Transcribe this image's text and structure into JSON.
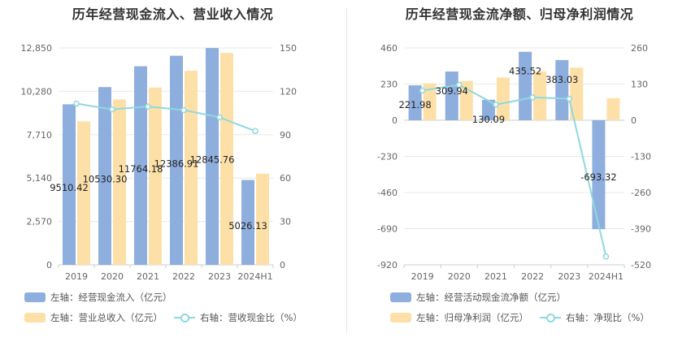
{
  "charts": [
    {
      "title": "历年经营现金流入、营业收入情况",
      "legend": [
        {
          "label": "左轴：经营现金流入（亿元）",
          "color": "#8eaede"
        },
        {
          "label": "左轴：营业总收入（亿元）",
          "color": "#fde0a8"
        },
        {
          "label": "右轴：营收现金比（%）",
          "color": "#8fd8dd"
        }
      ]
    },
    {
      "title": "历年经营现金流净额、归母净利润情况",
      "legend": [
        {
          "label": "左轴：经营活动现金流净额（亿元）",
          "color": "#8eaede"
        },
        {
          "label": "左轴：归母净利润（亿元）",
          "color": "#fde0a8"
        },
        {
          "label": "右轴：净现比（%）",
          "color": "#8fd8dd"
        }
      ]
    }
  ],
  "chart_data": [
    {
      "type": "bar",
      "title": "历年经营现金流入、营业收入情况",
      "categories": [
        "2019",
        "2020",
        "2021",
        "2022",
        "2023",
        "2024H1"
      ],
      "left_ticks": [
        "0",
        "2,570",
        "5,140",
        "7,710",
        "10,280",
        "12,850"
      ],
      "right_ticks": [
        "0",
        "30",
        "60",
        "90",
        "120",
        "150"
      ],
      "left_range": [
        0,
        12850
      ],
      "right_range": [
        0,
        150
      ],
      "series": [
        {
          "name": "经营现金流入",
          "axis": "left",
          "kind": "bar",
          "color": "#8eaede",
          "values": [
            9510.42,
            10530.3,
            11764.18,
            12386.91,
            12845.76,
            5026.13
          ],
          "labels": [
            "9510.42",
            "10530.30",
            "11764.18",
            "12386.91",
            "12845.76",
            "5026.13"
          ]
        },
        {
          "name": "营业总收入",
          "axis": "left",
          "kind": "bar",
          "color": "#fde0a8",
          "values": [
            8500,
            9800,
            10500,
            11500,
            12550,
            5400
          ]
        },
        {
          "name": "营收现金比",
          "axis": "right",
          "kind": "line",
          "color": "#8fd8dd",
          "values": [
            111.5,
            107.5,
            109.5,
            107,
            102,
            92.5
          ]
        }
      ]
    },
    {
      "type": "bar",
      "title": "历年经营现金流净额、归母净利润情况",
      "categories": [
        "2019",
        "2020",
        "2021",
        "2022",
        "2023",
        "2024H1"
      ],
      "left_ticks": [
        "-920",
        "-690",
        "-460",
        "-230",
        "0",
        "230",
        "460"
      ],
      "right_ticks": [
        "-520",
        "-390",
        "-260",
        "-130",
        "0",
        "130",
        "260"
      ],
      "left_range": [
        -920,
        460
      ],
      "right_range": [
        -520,
        260
      ],
      "series": [
        {
          "name": "经营活动现金流净额",
          "axis": "left",
          "kind": "bar",
          "color": "#8eaede",
          "values": [
            221.98,
            309.94,
            130.09,
            435.52,
            383.03,
            -693.32
          ],
          "labels": [
            "221.98",
            "309.94",
            "130.09",
            "435.52",
            "383.03",
            "-693.32"
          ]
        },
        {
          "name": "归母净利润",
          "axis": "left",
          "kind": "bar",
          "color": "#fde0a8",
          "values": [
            235,
            250,
            272,
            310,
            335,
            140
          ]
        },
        {
          "name": "净现比",
          "axis": "right",
          "kind": "line",
          "color": "#8fd8dd",
          "values": [
            107,
            127,
            56,
            82,
            77,
            -490
          ]
        }
      ]
    }
  ]
}
